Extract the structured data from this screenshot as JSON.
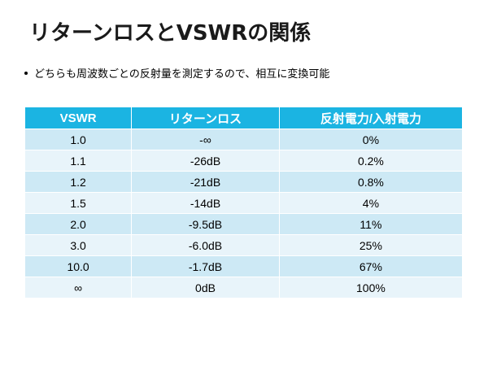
{
  "slide": {
    "title": "リターンロスとVSWRの関係",
    "bullet": "どちらも周波数ごとの反射量を測定するので、相互に変換可能"
  },
  "table": {
    "headers": [
      "VSWR",
      "リターンロス",
      "反射電力/入射電力"
    ],
    "rows": [
      [
        "1.0",
        "-∞",
        "0%"
      ],
      [
        "1.1",
        "-26dB",
        "0.2%"
      ],
      [
        "1.2",
        "-21dB",
        "0.8%"
      ],
      [
        "1.5",
        "-14dB",
        "4%"
      ],
      [
        "2.0",
        "-9.5dB",
        "11%"
      ],
      [
        "3.0",
        "-6.0dB",
        "25%"
      ],
      [
        "10.0",
        "-1.7dB",
        "67%"
      ],
      [
        "∞",
        "0dB",
        "100%"
      ]
    ]
  },
  "colors": {
    "header_bg": "#1bb4e2",
    "row_odd": "#cde9f5",
    "row_even": "#e8f4fa"
  }
}
